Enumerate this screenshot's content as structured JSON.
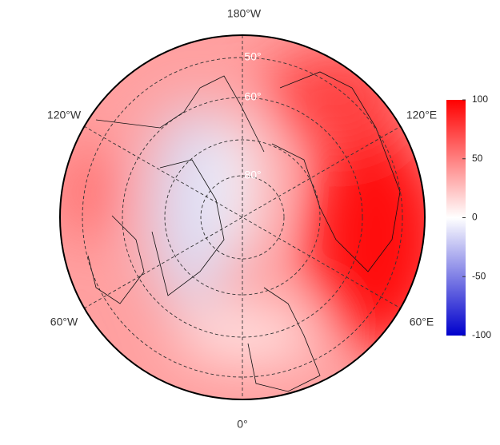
{
  "map": {
    "longitude_labels": [
      "180°W",
      "120°E",
      "60°E",
      "0°",
      "60°W",
      "120°W"
    ],
    "latitude_labels": [
      "50°",
      "60°",
      "80°"
    ],
    "colorbar": {
      "lim": [
        -100,
        100
      ],
      "ticks": [
        100,
        50,
        0,
        -50,
        -100
      ]
    }
  }
}
